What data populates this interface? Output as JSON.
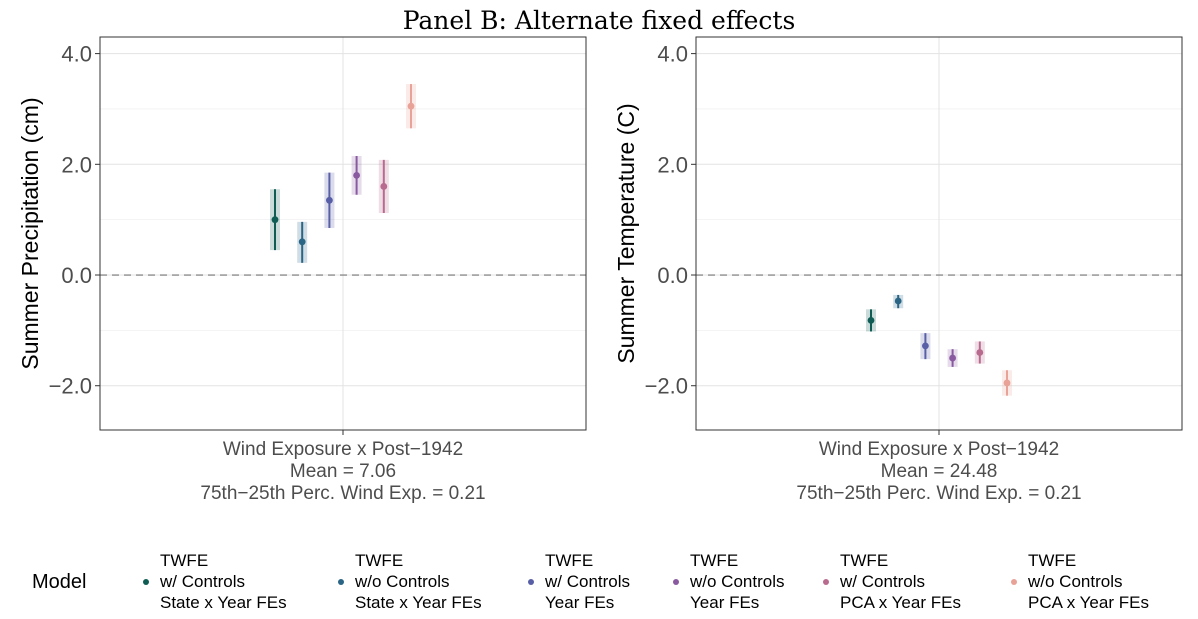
{
  "title": "Panel B: Alternate fixed effects",
  "legend": {
    "title": "Model",
    "items": [
      {
        "lines": [
          "TWFE",
          "w/ Controls",
          "State x Year FEs"
        ],
        "color": "#0f5c55"
      },
      {
        "lines": [
          "TWFE",
          "w/o Controls",
          "State x Year FEs"
        ],
        "color": "#2a6585"
      },
      {
        "lines": [
          "TWFE",
          "w/ Controls",
          "Year FEs"
        ],
        "color": "#585fa6"
      },
      {
        "lines": [
          "TWFE",
          "w/o Controls",
          "Year FEs"
        ],
        "color": "#8a5aa0"
      },
      {
        "lines": [
          "TWFE",
          "w/ Controls",
          "PCA x Year FEs"
        ],
        "color": "#b86b8e"
      },
      {
        "lines": [
          "TWFE",
          "w/o Controls",
          "PCA x Year FEs"
        ],
        "color": "#e8a298"
      }
    ]
  },
  "chart_data": [
    {
      "type": "scatter",
      "ylabel": "Summer Precipitation (cm)",
      "xlabel": [
        "Wind Exposure x Post−1942",
        "Mean = 7.06",
        "75th−25th Perc. Wind Exp. = 0.21"
      ],
      "ylim": [
        -2.8,
        4.3
      ],
      "yticks": [
        4.0,
        2.0,
        0.0,
        -2.0
      ],
      "ytick_labels": [
        "4.0",
        "2.0",
        "0.0",
        "−2.0"
      ],
      "reference_line": 0.0,
      "grid": true,
      "series": [
        {
          "name": "TWFE w/ Controls State x Year FEs",
          "estimate": 1.0,
          "ci90": [
            0.6,
            1.4
          ],
          "ci95": [
            0.45,
            1.55
          ]
        },
        {
          "name": "TWFE w/o Controls State x Year FEs",
          "estimate": 0.6,
          "ci90": [
            0.32,
            0.88
          ],
          "ci95": [
            0.22,
            0.96
          ]
        },
        {
          "name": "TWFE w/ Controls Year FEs",
          "estimate": 1.35,
          "ci90": [
            0.95,
            1.75
          ],
          "ci95": [
            0.85,
            1.85
          ]
        },
        {
          "name": "TWFE w/o Controls Year FEs",
          "estimate": 1.8,
          "ci90": [
            1.52,
            2.08
          ],
          "ci95": [
            1.45,
            2.15
          ]
        },
        {
          "name": "TWFE w/ Controls PCA x Year FEs",
          "estimate": 1.6,
          "ci90": [
            1.2,
            2.0
          ],
          "ci95": [
            1.12,
            2.08
          ]
        },
        {
          "name": "TWFE w/o Controls PCA x Year FEs",
          "estimate": 3.05,
          "ci90": [
            2.72,
            3.38
          ],
          "ci95": [
            2.65,
            3.45
          ]
        }
      ]
    },
    {
      "type": "scatter",
      "ylabel": "Summer Temperature (C)",
      "xlabel": [
        "Wind Exposure x Post−1942",
        "Mean = 24.48",
        "75th−25th Perc. Wind Exp. = 0.21"
      ],
      "ylim": [
        -2.8,
        4.3
      ],
      "yticks": [
        4.0,
        2.0,
        0.0,
        -2.0
      ],
      "ytick_labels": [
        "4.0",
        "2.0",
        "0.0",
        "−2.0"
      ],
      "reference_line": 0.0,
      "grid": true,
      "series": [
        {
          "name": "TWFE w/ Controls State x Year FEs",
          "estimate": -0.82,
          "ci90": [
            -0.98,
            -0.66
          ],
          "ci95": [
            -1.02,
            -0.62
          ]
        },
        {
          "name": "TWFE w/o Controls State x Year FEs",
          "estimate": -0.47,
          "ci90": [
            -0.56,
            -0.38
          ],
          "ci95": [
            -0.6,
            -0.36
          ]
        },
        {
          "name": "TWFE w/ Controls Year FEs",
          "estimate": -1.28,
          "ci90": [
            -1.45,
            -1.1
          ],
          "ci95": [
            -1.52,
            -1.05
          ]
        },
        {
          "name": "TWFE w/o Controls Year FEs",
          "estimate": -1.5,
          "ci90": [
            -1.62,
            -1.38
          ],
          "ci95": [
            -1.66,
            -1.34
          ]
        },
        {
          "name": "TWFE w/ Controls PCA x Year FEs",
          "estimate": -1.4,
          "ci90": [
            -1.55,
            -1.25
          ],
          "ci95": [
            -1.6,
            -1.2
          ]
        },
        {
          "name": "TWFE w/o Controls PCA x Year FEs",
          "estimate": -1.95,
          "ci90": [
            -2.12,
            -1.78
          ],
          "ci95": [
            -2.18,
            -1.72
          ]
        }
      ]
    }
  ]
}
